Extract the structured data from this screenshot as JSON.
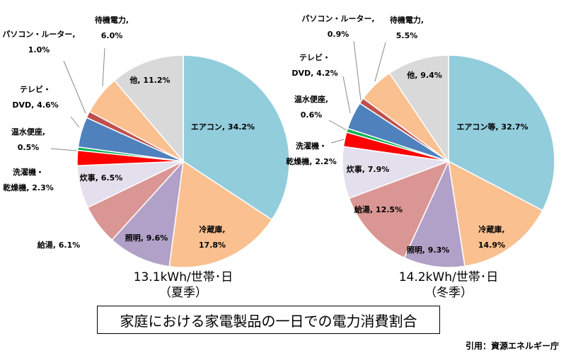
{
  "title": "家庭における家電製品の一日での電力消費割合",
  "citation": "引用：資源エネルギー庁",
  "chart_data": [
    {
      "type": "pie",
      "subtitle_line1": "13.1kWh/世帯･日",
      "subtitle_line2": "（夏季）",
      "slices": [
        {
          "label": "エアコン",
          "value": 34.2,
          "value_text": "34.2%",
          "color": "#92cddc"
        },
        {
          "label": "冷蔵庫",
          "value": 17.8,
          "value_text": "17.8%",
          "color": "#fac090"
        },
        {
          "label": "照明",
          "value": 9.6,
          "value_text": "9.6%",
          "color": "#b1a0c7"
        },
        {
          "label": "給湯",
          "value": 6.1,
          "value_text": "6.1%",
          "color": "#da9694"
        },
        {
          "label": "炊事",
          "value": 6.5,
          "value_text": "6.5%",
          "color": "#e4dfec"
        },
        {
          "label": "洗濯機・乾燥機",
          "label_lines": [
            "洗濯機・",
            "乾燥機,"
          ],
          "value": 2.3,
          "value_text": "2.3%",
          "color": "#ff0000"
        },
        {
          "label": "温水便座",
          "value": 0.5,
          "value_text": "0.5%",
          "color": "#00b050"
        },
        {
          "label": "テレビ・DVD",
          "label_lines": [
            "テレビ・",
            "DVD,"
          ],
          "value": 4.6,
          "value_text": "4.6%",
          "color": "#4f81bd"
        },
        {
          "label": "パソコン・ルーター",
          "value": 1.0,
          "value_text": "1.0%",
          "color": "#c0504d"
        },
        {
          "label": "待機電力",
          "value": 6.0,
          "value_text": "6.0%",
          "color": "#fac090"
        },
        {
          "label": "他",
          "value": 11.2,
          "value_text": "11.2%",
          "color": "#d9d9d9"
        }
      ]
    },
    {
      "type": "pie",
      "subtitle_line1": "14.2kWh/世帯･日",
      "subtitle_line2": "（冬季）",
      "slices": [
        {
          "label": "エアコン等",
          "value": 32.7,
          "value_text": "32.7%",
          "color": "#92cddc"
        },
        {
          "label": "冷蔵庫",
          "value": 14.9,
          "value_text": "14.9%",
          "color": "#fac090"
        },
        {
          "label": "照明",
          "value": 9.3,
          "value_text": "9.3%",
          "color": "#b1a0c7"
        },
        {
          "label": "給湯",
          "value": 12.5,
          "value_text": "12.5%",
          "color": "#da9694"
        },
        {
          "label": "炊事",
          "value": 7.9,
          "value_text": "7.9%",
          "color": "#e4dfec"
        },
        {
          "label": "洗濯機・乾燥機",
          "label_lines": [
            "洗濯機・",
            "乾燥機,"
          ],
          "value": 2.2,
          "value_text": "2.2%",
          "color": "#ff0000"
        },
        {
          "label": "温水便座",
          "value": 0.6,
          "value_text": "0.6%",
          "color": "#00b050"
        },
        {
          "label": "テレビ・DVD",
          "label_lines": [
            "テレビ・",
            "DVD,"
          ],
          "value": 4.2,
          "value_text": "4.2%",
          "color": "#4f81bd"
        },
        {
          "label": "パソコン・ルーター",
          "value": 0.9,
          "value_text": "0.9%",
          "color": "#c0504d"
        },
        {
          "label": "待機電力",
          "value": 5.5,
          "value_text": "5.5%",
          "color": "#fac090"
        },
        {
          "label": "他",
          "value": 9.4,
          "value_text": "9.4%",
          "color": "#d9d9d9"
        }
      ]
    }
  ]
}
